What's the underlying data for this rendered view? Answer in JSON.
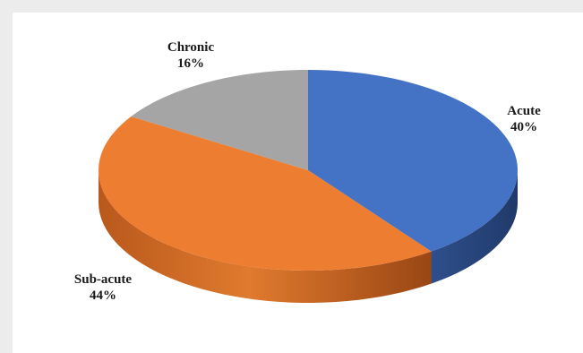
{
  "chart_data": {
    "type": "pie",
    "style": "3d",
    "categories": [
      "Acute",
      "Sub-acute",
      "Chronic"
    ],
    "values": [
      40,
      44,
      16
    ],
    "unit": "%",
    "colors": [
      "#4472C4",
      "#ED7D31",
      "#A5A5A5"
    ],
    "labels": [
      {
        "name": "Acute",
        "pct": "40%"
      },
      {
        "name": "Sub-acute",
        "pct": "44%"
      },
      {
        "name": "Chronic",
        "pct": "16%"
      }
    ],
    "legend": "none"
  }
}
